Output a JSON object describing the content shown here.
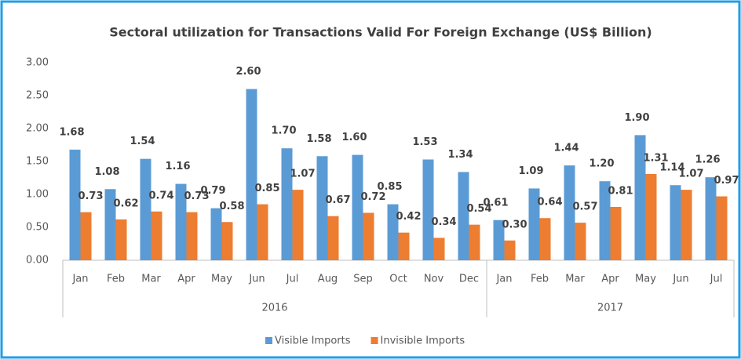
{
  "chart_data": {
    "type": "bar",
    "title": "Sectoral utilization for Transactions Valid For Foreign Exchange (US$ Billion)",
    "category_groups": [
      {
        "label": "2016",
        "categories": [
          "Jan",
          "Feb",
          "Mar",
          "Apr",
          "May",
          "Jun",
          "Jul",
          "Aug",
          "Sep",
          "Oct",
          "Nov",
          "Dec"
        ]
      },
      {
        "label": "2017",
        "categories": [
          "Jan",
          "Feb",
          "Mar",
          "Apr",
          "May",
          "Jun",
          "Jul"
        ]
      }
    ],
    "series": [
      {
        "name": "Visible Imports",
        "color": "#5b9bd5",
        "values": [
          1.68,
          1.08,
          1.54,
          1.16,
          0.79,
          2.6,
          1.7,
          1.58,
          1.6,
          0.85,
          1.53,
          1.34,
          0.61,
          1.09,
          1.44,
          1.2,
          1.9,
          1.14,
          1.26
        ],
        "value_labels": [
          "1.68",
          "1.08",
          "1.54",
          "1.16",
          "0.79",
          "2.60",
          "1.70",
          "1.58",
          "1.60",
          "0.85",
          "1.53",
          "1.34",
          "0.61",
          "1.09",
          "1.44",
          "1.20",
          "1.90",
          "1.14",
          "1.26"
        ]
      },
      {
        "name": "Invisible Imports",
        "color": "#ed7d31",
        "values": [
          0.73,
          0.62,
          0.74,
          0.73,
          0.58,
          0.85,
          1.07,
          0.67,
          0.72,
          0.42,
          0.34,
          0.54,
          0.3,
          0.64,
          0.57,
          0.81,
          1.31,
          1.07,
          0.97
        ],
        "value_labels": [
          "0.73",
          "0.62",
          "0.74",
          "0.73",
          "0.58",
          "0.85",
          "1.07",
          "0.67",
          "0.72",
          "0.42",
          "0.34",
          "0.54",
          "0.30",
          "0.64",
          "0.57",
          "0.81",
          "1.31",
          "1.07",
          "0.97"
        ]
      }
    ],
    "ylim": [
      0,
      3
    ],
    "yticks": [
      {
        "value": 0,
        "label": "0.00"
      },
      {
        "value": 0.5,
        "label": "0.50"
      },
      {
        "value": 1,
        "label": "1.00"
      },
      {
        "value": 1.5,
        "label": "1.50"
      },
      {
        "value": 2,
        "label": "2.00"
      },
      {
        "value": 2.5,
        "label": "2.50"
      },
      {
        "value": 3,
        "label": "3.00"
      }
    ],
    "legend": "bottom"
  }
}
